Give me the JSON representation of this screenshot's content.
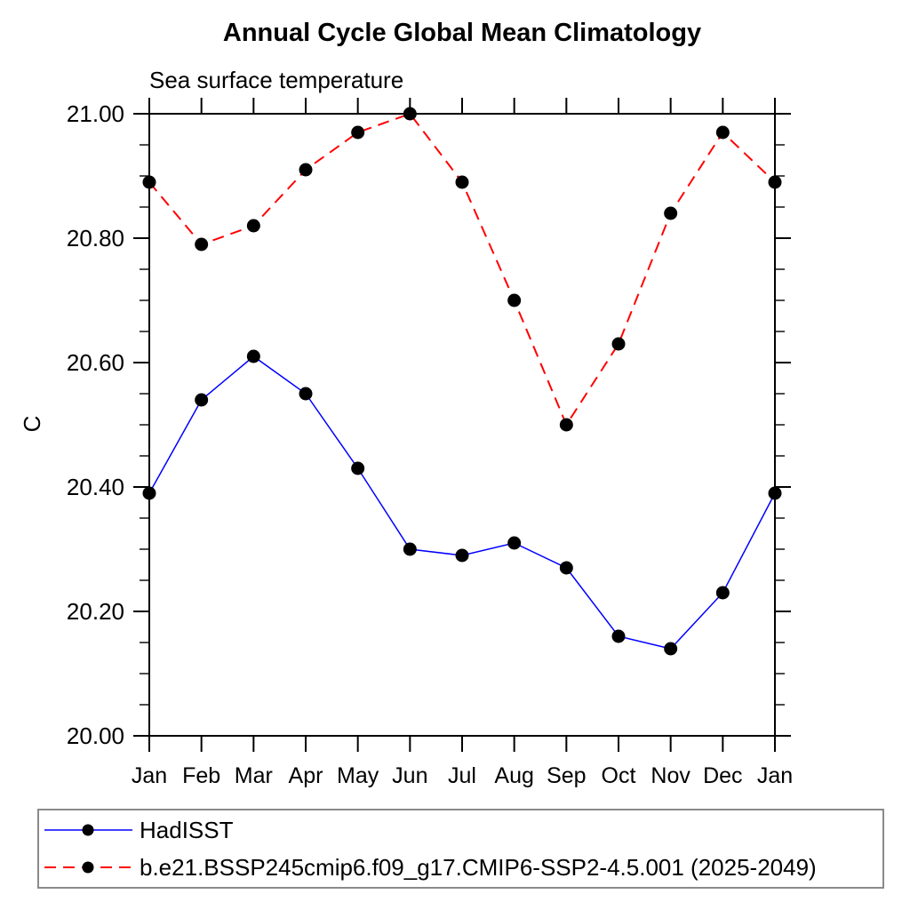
{
  "chart_data": {
    "type": "line",
    "title": "Annual Cycle Global Mean Climatology",
    "subtitle": "Sea surface temperature",
    "y_axis": {
      "label": "C",
      "range": [
        20.0,
        21.0
      ],
      "tick_values": [
        21.0,
        20.8,
        20.6,
        20.4,
        20.2,
        20.0
      ],
      "tick_labels": [
        "21.00",
        "20.80",
        "20.60",
        "20.40",
        "20.20",
        "20.00"
      ],
      "major_step": 0.2,
      "minor_step": 0.05
    },
    "x_categories": [
      "Jan",
      "Feb",
      "Mar",
      "Apr",
      "May",
      "Jun",
      "Jul",
      "Aug",
      "Sep",
      "Oct",
      "Nov",
      "Dec",
      "Jan"
    ],
    "grid": "off",
    "legend_position": "bottom-left-box",
    "series": [
      {
        "name": "HadISST",
        "color": "#0000ff",
        "line_style": "solid",
        "line_width": 1.5,
        "marker": "filled-circle",
        "marker_color": "#000000",
        "values": [
          20.39,
          20.54,
          20.61,
          20.55,
          20.43,
          20.3,
          20.29,
          20.31,
          20.27,
          20.16,
          20.14,
          20.23,
          20.39
        ]
      },
      {
        "name": "b.e21.BSSP245cmip6.f09_g17.CMIP6-SSP2-4.5.001 (2025-2049)",
        "color": "#ff0000",
        "line_style": "dashed",
        "line_width": 2,
        "marker": "filled-circle",
        "marker_color": "#000000",
        "values": [
          20.89,
          20.79,
          20.82,
          20.91,
          20.97,
          21.0,
          20.89,
          20.7,
          20.5,
          20.63,
          20.84,
          20.97,
          20.89
        ]
      }
    ]
  }
}
